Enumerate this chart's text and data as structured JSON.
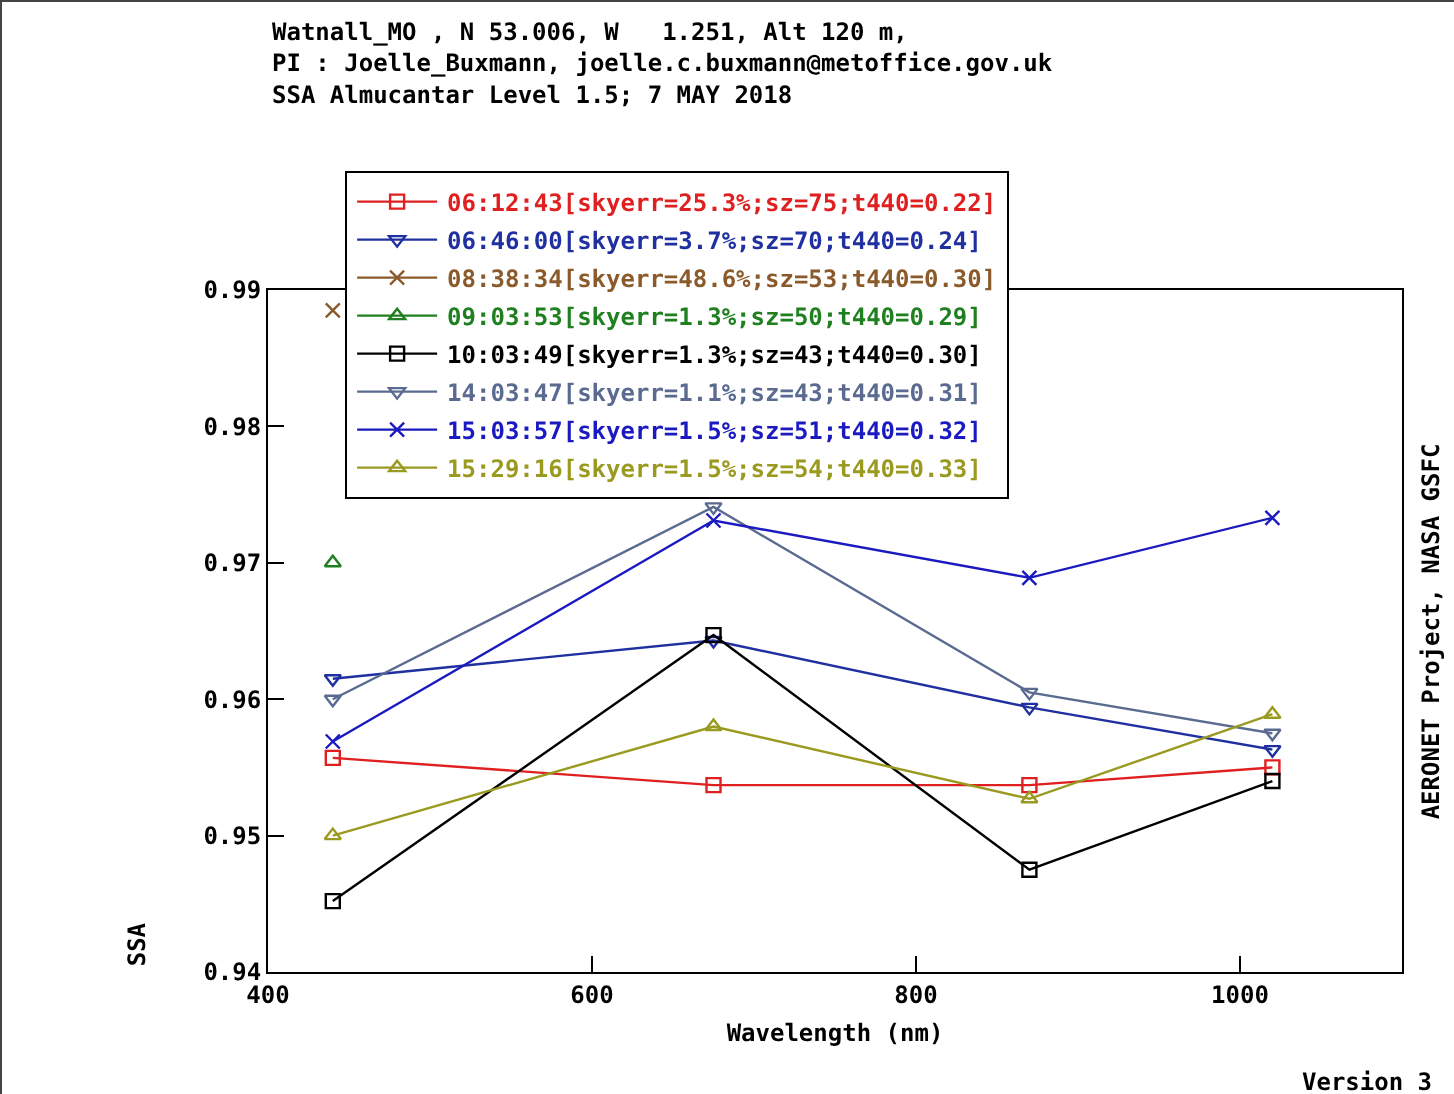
{
  "chart_data": {
    "type": "line",
    "title": "Watnall_MO , N 53.006, W   1.251, Alt 120 m,\nPI : Joelle_Buxmann, joelle.c.buxmann@metoffice.gov.uk\nSSA Almucantar Level 1.5; 7 MAY 2018",
    "xlabel": "Wavelength (nm)",
    "ylabel": "SSA",
    "annotations": [
      "AERONET Project, NASA GSFC",
      "Version 3"
    ],
    "x": [
      440,
      675,
      870,
      1020
    ],
    "series": [
      {
        "name": "06:12:43[skyerr=25.3%;sz=75;t440=0.22]",
        "color": "#e02020",
        "marker": "square",
        "values": [
          0.9557,
          0.9537,
          0.9537,
          0.955
        ]
      },
      {
        "name": "06:46:00[skyerr=3.7%;sz=70;t440=0.24]",
        "color": "#2030a0",
        "marker": "triangle-down",
        "values": [
          0.9615,
          0.9643,
          0.9594,
          0.9563
        ]
      },
      {
        "name": "08:38:34[skyerr=48.6%;sz=53;t440=0.30]",
        "color": "#8b5a2b",
        "marker": "cross",
        "values": [
          0.9885,
          null,
          null,
          null
        ]
      },
      {
        "name": "09:03:53[skyerr=1.3%;sz=50;t440=0.29]",
        "color": "#208020",
        "marker": "triangle",
        "values": [
          0.97,
          null,
          null,
          null
        ]
      },
      {
        "name": "10:03:49[skyerr=1.3%;sz=43;t440=0.30]",
        "color": "#000000",
        "marker": "square",
        "values": [
          0.9452,
          0.9647,
          0.9475,
          0.954
        ]
      },
      {
        "name": "14:03:47[skyerr=1.1%;sz=43;t440=0.31]",
        "color": "#5a6a90",
        "marker": "triangle-down",
        "values": [
          0.96,
          0.9741,
          0.9605,
          0.9575
        ]
      },
      {
        "name": "15:03:57[skyerr=1.5%;sz=51;t440=0.32]",
        "color": "#1a1ac0",
        "marker": "cross",
        "values": [
          0.9569,
          0.9731,
          0.9689,
          0.9733
        ]
      },
      {
        "name": "15:29:16[skyerr=1.5%;sz=54;t440=0.33]",
        "color": "#9a9a20",
        "marker": "triangle",
        "values": [
          0.95,
          0.958,
          0.9527,
          0.9589
        ]
      }
    ],
    "xlim": [
      400,
      1100
    ],
    "xticks": [
      400,
      600,
      800,
      1000
    ],
    "ylim": [
      0.94,
      0.99
    ],
    "yticks": [
      {
        "value": 0.94,
        "label": "0.94"
      },
      {
        "value": 0.95,
        "label": "0.95"
      },
      {
        "value": 0.96,
        "label": "0.96"
      },
      {
        "value": 0.97,
        "label": "0.97"
      },
      {
        "value": 0.98,
        "label": "0.98"
      },
      {
        "value": 0.99,
        "label": "0.99"
      }
    ],
    "grid": false,
    "legend": "top",
    "line_style": "solid"
  }
}
